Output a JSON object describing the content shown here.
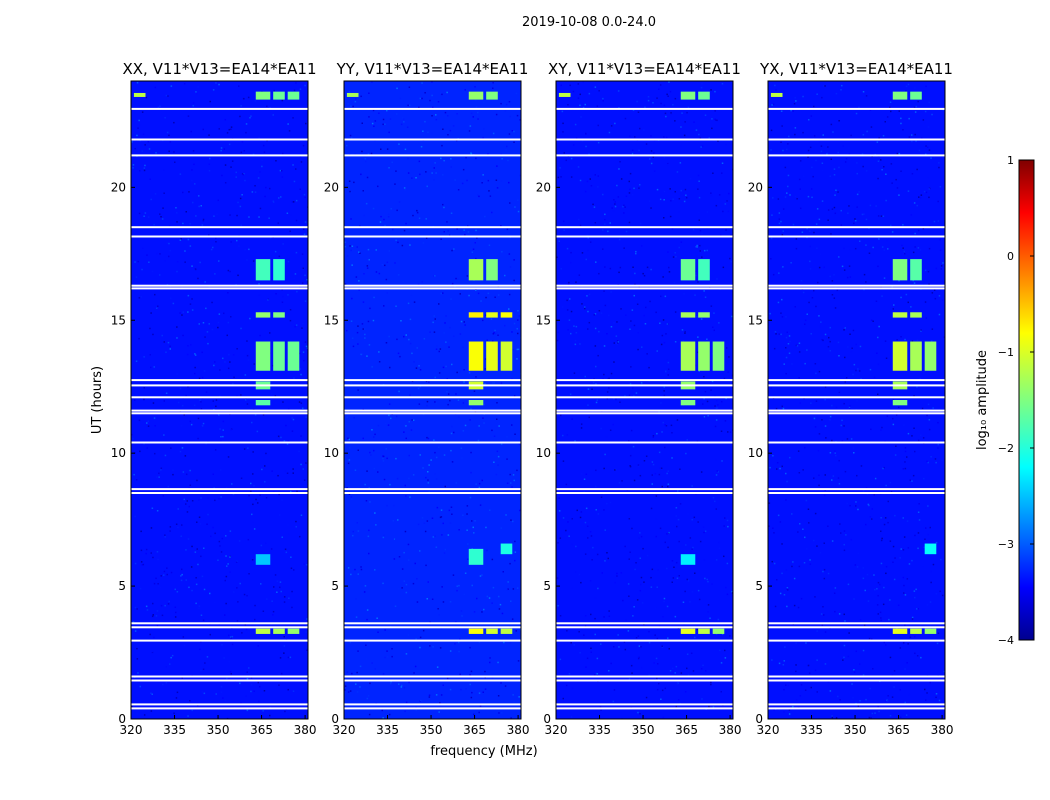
{
  "figure": {
    "suptitle": "2019-10-08 0.0-24.0",
    "ylabel": "UT (hours)",
    "xlabel": "frequency (MHz)",
    "colorbar_label": "log₁₀ amplitude",
    "colorbar_ticks": [
      "1",
      "0",
      "−1",
      "−2",
      "−3",
      "−4"
    ]
  },
  "colors": {
    "background_low": "#00009a",
    "blank_rows": "#ffffff"
  },
  "chart_data": [
    {
      "type": "heatmap",
      "title": "XX, V11*V13=EA14*EA11",
      "xlabel": "",
      "ylabel": "UT (hours)",
      "xlim": [
        320,
        381
      ],
      "ylim": [
        0,
        24
      ],
      "x_ticks": [
        "320",
        "335",
        "350",
        "365",
        "380"
      ],
      "y_ticks": [
        "0",
        "5",
        "10",
        "15",
        "20"
      ],
      "colorscale": "jet",
      "zlim": [
        -4,
        1
      ],
      "background_level": -3.3,
      "blank_rows_hours": [
        0.4,
        0.55,
        1.45,
        1.6,
        2.95,
        3.45,
        3.6,
        8.5,
        8.65,
        10.4,
        11.5,
        11.6,
        12.1,
        12.55,
        12.75,
        16.2,
        16.3,
        18.15,
        18.5,
        21.2,
        21.8,
        22.95
      ],
      "rfi_blocks": [
        {
          "f": [
            363,
            368
          ],
          "t": [
            3.2,
            3.4
          ],
          "level": -1.2
        },
        {
          "f": [
            369,
            373
          ],
          "t": [
            3.2,
            3.4
          ],
          "level": -1.3
        },
        {
          "f": [
            374,
            378
          ],
          "t": [
            3.2,
            3.4
          ],
          "level": -1.4
        },
        {
          "f": [
            363,
            368
          ],
          "t": [
            5.8,
            6.2
          ],
          "level": -2.4
        },
        {
          "f": [
            363,
            368
          ],
          "t": [
            11.8,
            12.0
          ],
          "level": -1.7
        },
        {
          "f": [
            363,
            368
          ],
          "t": [
            12.4,
            12.7
          ],
          "level": -1.6
        },
        {
          "f": [
            363,
            368
          ],
          "t": [
            13.1,
            14.2
          ],
          "level": -1.5
        },
        {
          "f": [
            369,
            373
          ],
          "t": [
            13.1,
            14.2
          ],
          "level": -1.6
        },
        {
          "f": [
            374,
            378
          ],
          "t": [
            13.1,
            14.2
          ],
          "level": -1.6
        },
        {
          "f": [
            363,
            368
          ],
          "t": [
            15.1,
            15.3
          ],
          "level": -1.4
        },
        {
          "f": [
            369,
            373
          ],
          "t": [
            15.1,
            15.3
          ],
          "level": -1.5
        },
        {
          "f": [
            363,
            368
          ],
          "t": [
            16.5,
            17.3
          ],
          "level": -1.8
        },
        {
          "f": [
            369,
            373
          ],
          "t": [
            16.5,
            17.3
          ],
          "level": -1.9
        },
        {
          "f": [
            363,
            368
          ],
          "t": [
            23.3,
            23.6
          ],
          "level": -1.5
        },
        {
          "f": [
            369,
            373
          ],
          "t": [
            23.3,
            23.6
          ],
          "level": -1.6
        },
        {
          "f": [
            374,
            378
          ],
          "t": [
            23.3,
            23.6
          ],
          "level": -1.6
        },
        {
          "f": [
            321,
            325
          ],
          "t": [
            23.4,
            23.55
          ],
          "level": -1.2
        }
      ]
    },
    {
      "type": "heatmap",
      "title": "YY, V11*V13=EA14*EA11",
      "xlabel": "frequency (MHz)",
      "ylabel": "",
      "xlim": [
        320,
        381
      ],
      "ylim": [
        0,
        24
      ],
      "x_ticks": [
        "320",
        "335",
        "350",
        "365",
        "380"
      ],
      "y_ticks": [
        "0",
        "5",
        "10",
        "15",
        "20"
      ],
      "colorscale": "jet",
      "zlim": [
        -4,
        1
      ],
      "background_level": -3.2,
      "blank_rows_hours": [
        0.4,
        0.55,
        1.45,
        1.6,
        2.95,
        3.45,
        3.6,
        8.5,
        8.65,
        10.4,
        11.5,
        11.6,
        12.1,
        12.55,
        12.75,
        16.2,
        16.3,
        18.15,
        18.5,
        21.2,
        21.8,
        22.95
      ],
      "rfi_blocks": [
        {
          "f": [
            363,
            368
          ],
          "t": [
            3.2,
            3.4
          ],
          "level": -0.9
        },
        {
          "f": [
            369,
            373
          ],
          "t": [
            3.2,
            3.4
          ],
          "level": -1.1
        },
        {
          "f": [
            374,
            378
          ],
          "t": [
            3.2,
            3.4
          ],
          "level": -1.2
        },
        {
          "f": [
            363,
            368
          ],
          "t": [
            5.8,
            6.4
          ],
          "level": -1.9
        },
        {
          "f": [
            374,
            378
          ],
          "t": [
            6.2,
            6.6
          ],
          "level": -2.0
        },
        {
          "f": [
            363,
            368
          ],
          "t": [
            11.8,
            12.0
          ],
          "level": -1.4
        },
        {
          "f": [
            363,
            368
          ],
          "t": [
            12.4,
            12.7
          ],
          "level": -1.1
        },
        {
          "f": [
            363,
            368
          ],
          "t": [
            13.1,
            14.2
          ],
          "level": -0.9
        },
        {
          "f": [
            369,
            373
          ],
          "t": [
            13.1,
            14.2
          ],
          "level": -1.0
        },
        {
          "f": [
            374,
            378
          ],
          "t": [
            13.1,
            14.2
          ],
          "level": -1.1
        },
        {
          "f": [
            363,
            368
          ],
          "t": [
            15.1,
            15.3
          ],
          "level": -0.8
        },
        {
          "f": [
            369,
            373
          ],
          "t": [
            15.1,
            15.3
          ],
          "level": -1.0
        },
        {
          "f": [
            374,
            378
          ],
          "t": [
            15.1,
            15.3
          ],
          "level": -0.9
        },
        {
          "f": [
            363,
            368
          ],
          "t": [
            16.5,
            17.3
          ],
          "level": -1.3
        },
        {
          "f": [
            369,
            373
          ],
          "t": [
            16.5,
            17.3
          ],
          "level": -1.5
        },
        {
          "f": [
            363,
            368
          ],
          "t": [
            23.3,
            23.6
          ],
          "level": -1.4
        },
        {
          "f": [
            369,
            373
          ],
          "t": [
            23.3,
            23.6
          ],
          "level": -1.5
        },
        {
          "f": [
            321,
            325
          ],
          "t": [
            23.4,
            23.55
          ],
          "level": -1.3
        }
      ]
    },
    {
      "type": "heatmap",
      "title": "XY, V11*V13=EA14*EA11",
      "xlabel": "",
      "ylabel": "",
      "xlim": [
        320,
        381
      ],
      "ylim": [
        0,
        24
      ],
      "x_ticks": [
        "320",
        "335",
        "350",
        "365",
        "380"
      ],
      "y_ticks": [
        "0",
        "5",
        "10",
        "15",
        "20"
      ],
      "colorscale": "jet",
      "zlim": [
        -4,
        1
      ],
      "background_level": -3.3,
      "blank_rows_hours": [
        0.4,
        0.55,
        1.45,
        1.6,
        2.95,
        3.45,
        3.6,
        8.5,
        8.65,
        10.4,
        11.5,
        11.6,
        12.1,
        12.55,
        12.75,
        16.2,
        16.3,
        18.15,
        18.5,
        21.2,
        21.8,
        22.95
      ],
      "rfi_blocks": [
        {
          "f": [
            363,
            368
          ],
          "t": [
            3.2,
            3.4
          ],
          "level": -1.0
        },
        {
          "f": [
            369,
            373
          ],
          "t": [
            3.2,
            3.4
          ],
          "level": -1.2
        },
        {
          "f": [
            374,
            378
          ],
          "t": [
            3.2,
            3.4
          ],
          "level": -1.4
        },
        {
          "f": [
            363,
            368
          ],
          "t": [
            5.8,
            6.2
          ],
          "level": -2.2
        },
        {
          "f": [
            363,
            368
          ],
          "t": [
            11.8,
            12.0
          ],
          "level": -1.5
        },
        {
          "f": [
            363,
            368
          ],
          "t": [
            12.4,
            12.7
          ],
          "level": -1.4
        },
        {
          "f": [
            363,
            368
          ],
          "t": [
            13.1,
            14.2
          ],
          "level": -1.3
        },
        {
          "f": [
            369,
            373
          ],
          "t": [
            13.1,
            14.2
          ],
          "level": -1.4
        },
        {
          "f": [
            374,
            378
          ],
          "t": [
            13.1,
            14.2
          ],
          "level": -1.5
        },
        {
          "f": [
            363,
            368
          ],
          "t": [
            15.1,
            15.3
          ],
          "level": -1.3
        },
        {
          "f": [
            369,
            373
          ],
          "t": [
            15.1,
            15.3
          ],
          "level": -1.4
        },
        {
          "f": [
            363,
            368
          ],
          "t": [
            16.5,
            17.3
          ],
          "level": -1.6
        },
        {
          "f": [
            369,
            373
          ],
          "t": [
            16.5,
            17.3
          ],
          "level": -1.8
        },
        {
          "f": [
            363,
            368
          ],
          "t": [
            23.3,
            23.6
          ],
          "level": -1.5
        },
        {
          "f": [
            369,
            373
          ],
          "t": [
            23.3,
            23.6
          ],
          "level": -1.6
        },
        {
          "f": [
            321,
            325
          ],
          "t": [
            23.4,
            23.55
          ],
          "level": -1.2
        }
      ]
    },
    {
      "type": "heatmap",
      "title": "YX, V11*V13=EA14*EA11",
      "xlabel": "",
      "ylabel": "",
      "xlim": [
        320,
        381
      ],
      "ylim": [
        0,
        24
      ],
      "x_ticks": [
        "320",
        "335",
        "350",
        "365",
        "380"
      ],
      "y_ticks": [
        "0",
        "5",
        "10",
        "15",
        "20"
      ],
      "colorscale": "jet",
      "zlim": [
        -4,
        1
      ],
      "background_level": -3.3,
      "blank_rows_hours": [
        0.4,
        0.55,
        1.45,
        1.6,
        2.95,
        3.45,
        3.6,
        8.5,
        8.65,
        10.4,
        11.5,
        11.6,
        12.1,
        12.55,
        12.75,
        16.2,
        16.3,
        18.15,
        18.5,
        21.2,
        21.8,
        22.95
      ],
      "rfi_blocks": [
        {
          "f": [
            363,
            368
          ],
          "t": [
            3.2,
            3.4
          ],
          "level": -1.0
        },
        {
          "f": [
            369,
            373
          ],
          "t": [
            3.2,
            3.4
          ],
          "level": -1.2
        },
        {
          "f": [
            374,
            378
          ],
          "t": [
            3.2,
            3.4
          ],
          "level": -1.4
        },
        {
          "f": [
            374,
            378
          ],
          "t": [
            6.2,
            6.6
          ],
          "level": -2.1
        },
        {
          "f": [
            363,
            368
          ],
          "t": [
            11.8,
            12.0
          ],
          "level": -1.5
        },
        {
          "f": [
            363,
            368
          ],
          "t": [
            12.4,
            12.7
          ],
          "level": -1.3
        },
        {
          "f": [
            363,
            368
          ],
          "t": [
            13.1,
            14.2
          ],
          "level": -1.1
        },
        {
          "f": [
            369,
            373
          ],
          "t": [
            13.1,
            14.2
          ],
          "level": -1.3
        },
        {
          "f": [
            374,
            378
          ],
          "t": [
            13.1,
            14.2
          ],
          "level": -1.4
        },
        {
          "f": [
            363,
            368
          ],
          "t": [
            15.1,
            15.3
          ],
          "level": -1.2
        },
        {
          "f": [
            369,
            373
          ],
          "t": [
            15.1,
            15.3
          ],
          "level": -1.3
        },
        {
          "f": [
            363,
            368
          ],
          "t": [
            16.5,
            17.3
          ],
          "level": -1.5
        },
        {
          "f": [
            369,
            373
          ],
          "t": [
            16.5,
            17.3
          ],
          "level": -1.7
        },
        {
          "f": [
            363,
            368
          ],
          "t": [
            23.3,
            23.6
          ],
          "level": -1.5
        },
        {
          "f": [
            369,
            373
          ],
          "t": [
            23.3,
            23.6
          ],
          "level": -1.6
        },
        {
          "f": [
            321,
            325
          ],
          "t": [
            23.4,
            23.55
          ],
          "level": -1.2
        }
      ]
    }
  ]
}
